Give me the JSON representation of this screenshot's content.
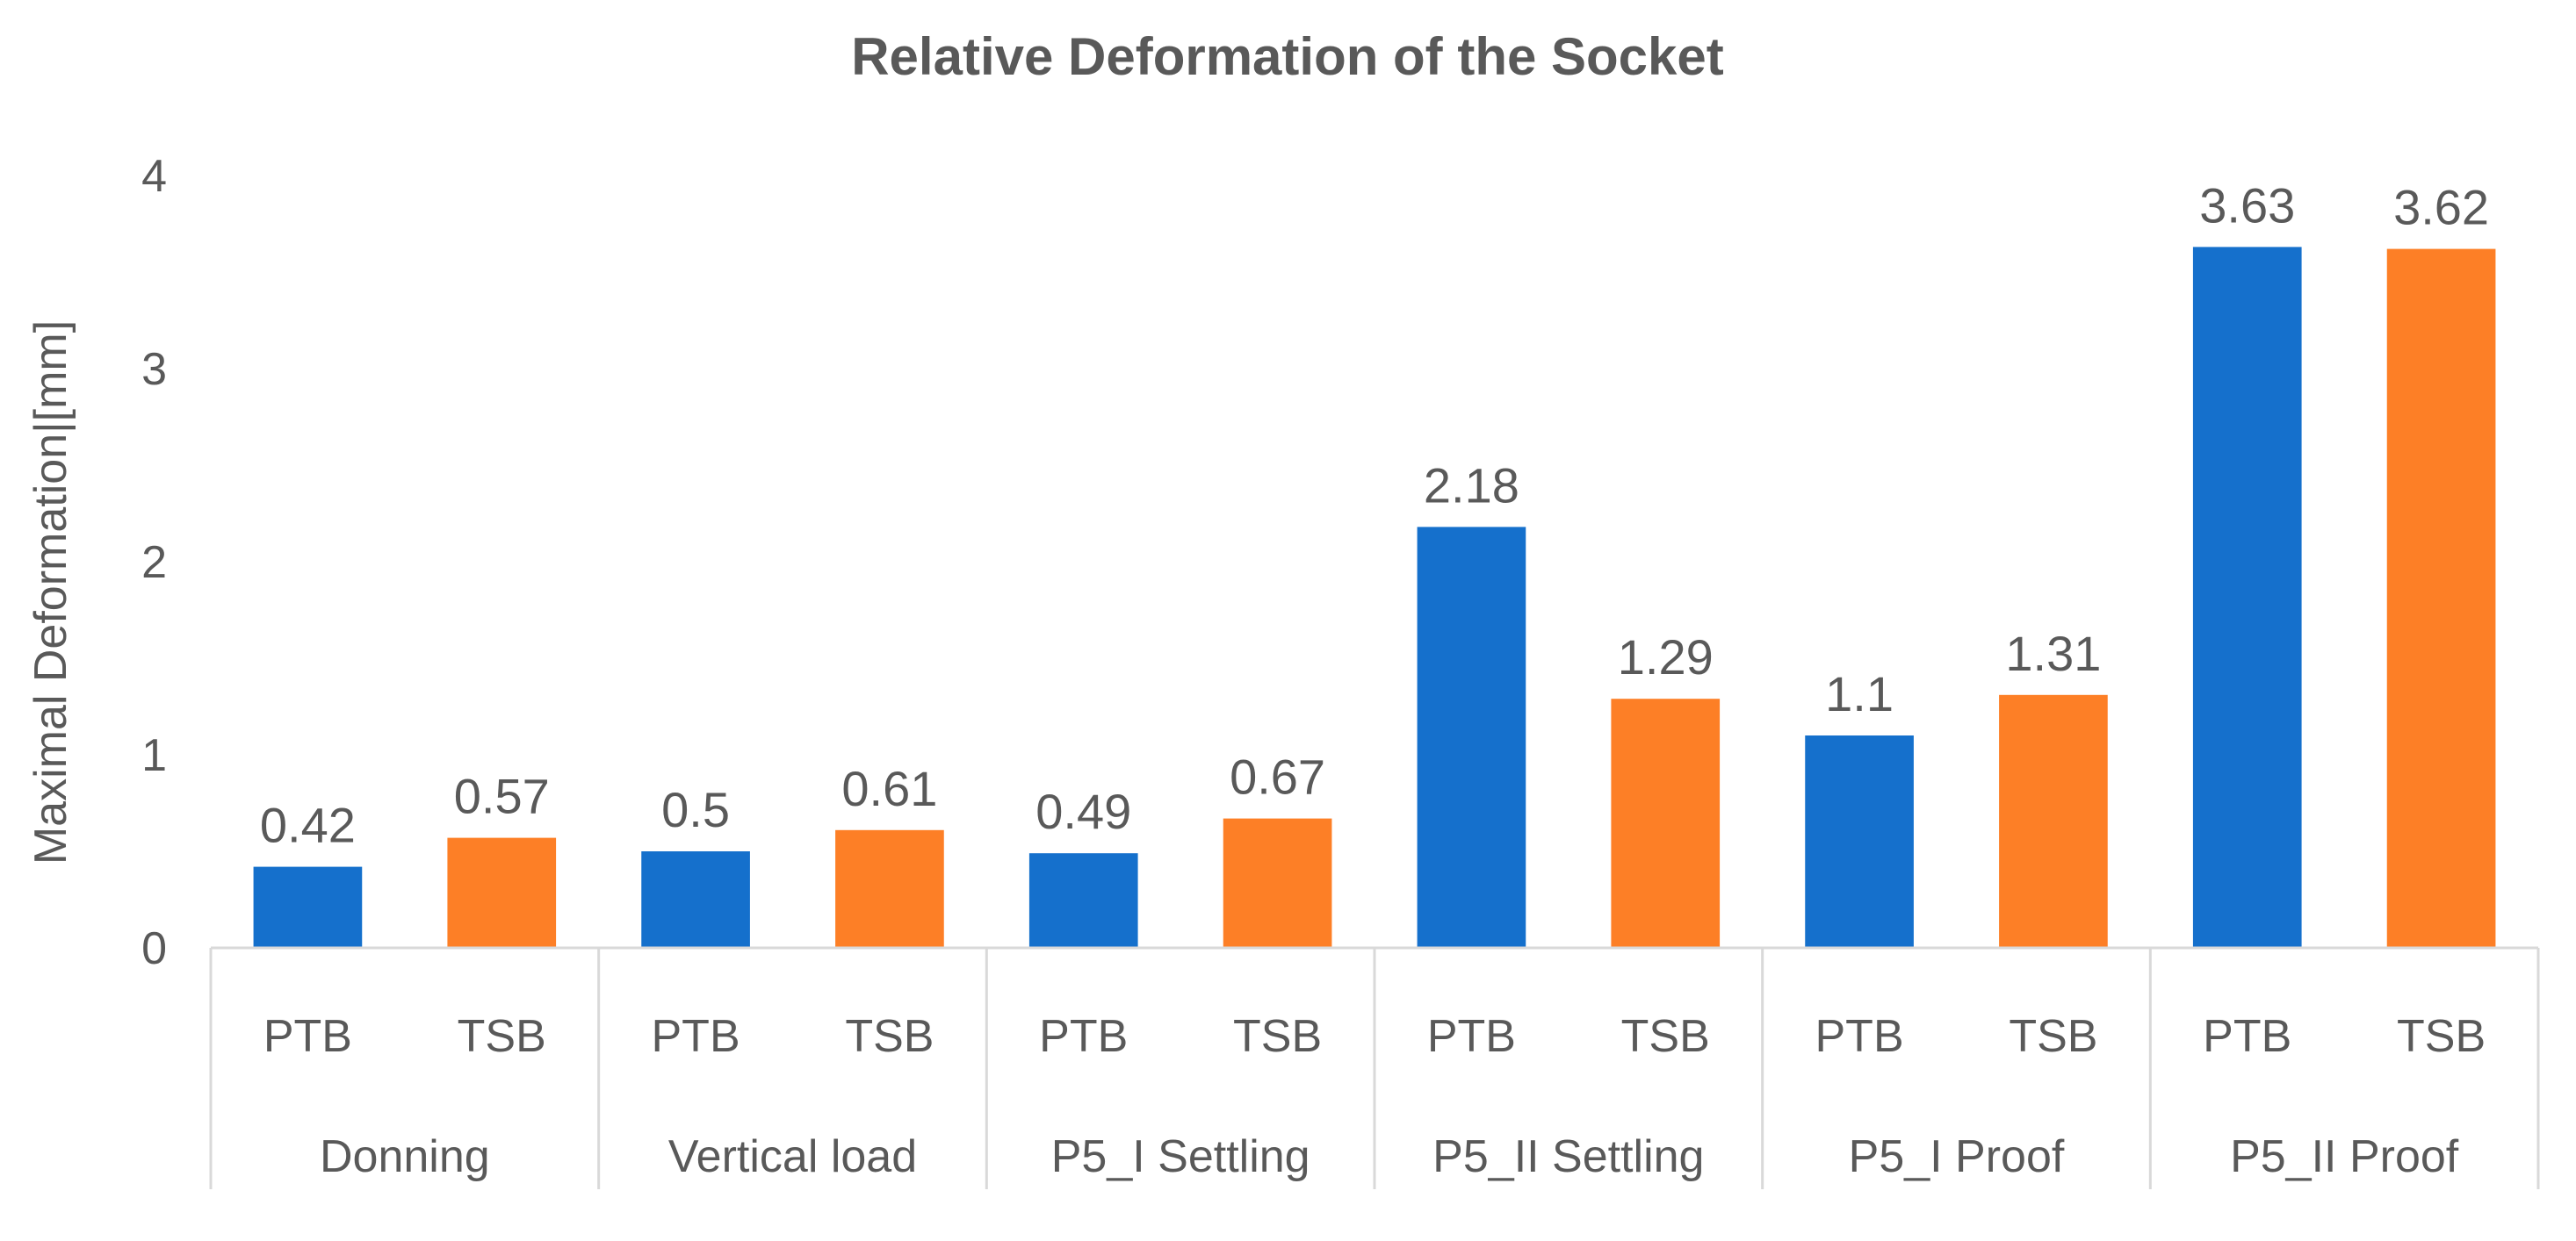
{
  "chart_data": {
    "type": "bar",
    "title": "Relative Deformation of the Socket",
    "ylabel": "Maximal Deformation|[mm]",
    "xlabel": "",
    "ylim": [
      0,
      4
    ],
    "yticks": [
      "0",
      "1",
      "2",
      "3",
      "4"
    ],
    "grid": false,
    "legend": "none",
    "groups": [
      "Donning",
      "Vertical load",
      "P5_I Settling",
      "P5_II Settling",
      "P5_I Proof",
      "P5_II Proof"
    ],
    "subcategories": [
      "PTB",
      "TSB"
    ],
    "series": [
      {
        "name": "PTB",
        "color": "#1570cc",
        "values": [
          0.42,
          0.5,
          0.49,
          2.18,
          1.1,
          3.63
        ],
        "labels": [
          "0.42",
          "0.5",
          "0.49",
          "2.18",
          "1.1",
          "3.63"
        ]
      },
      {
        "name": "TSB",
        "color": "#fd7f26",
        "values": [
          0.57,
          0.61,
          0.67,
          1.29,
          1.31,
          3.62
        ],
        "labels": [
          "0.57",
          "0.61",
          "0.67",
          "1.29",
          "1.31",
          "3.62"
        ]
      }
    ]
  }
}
